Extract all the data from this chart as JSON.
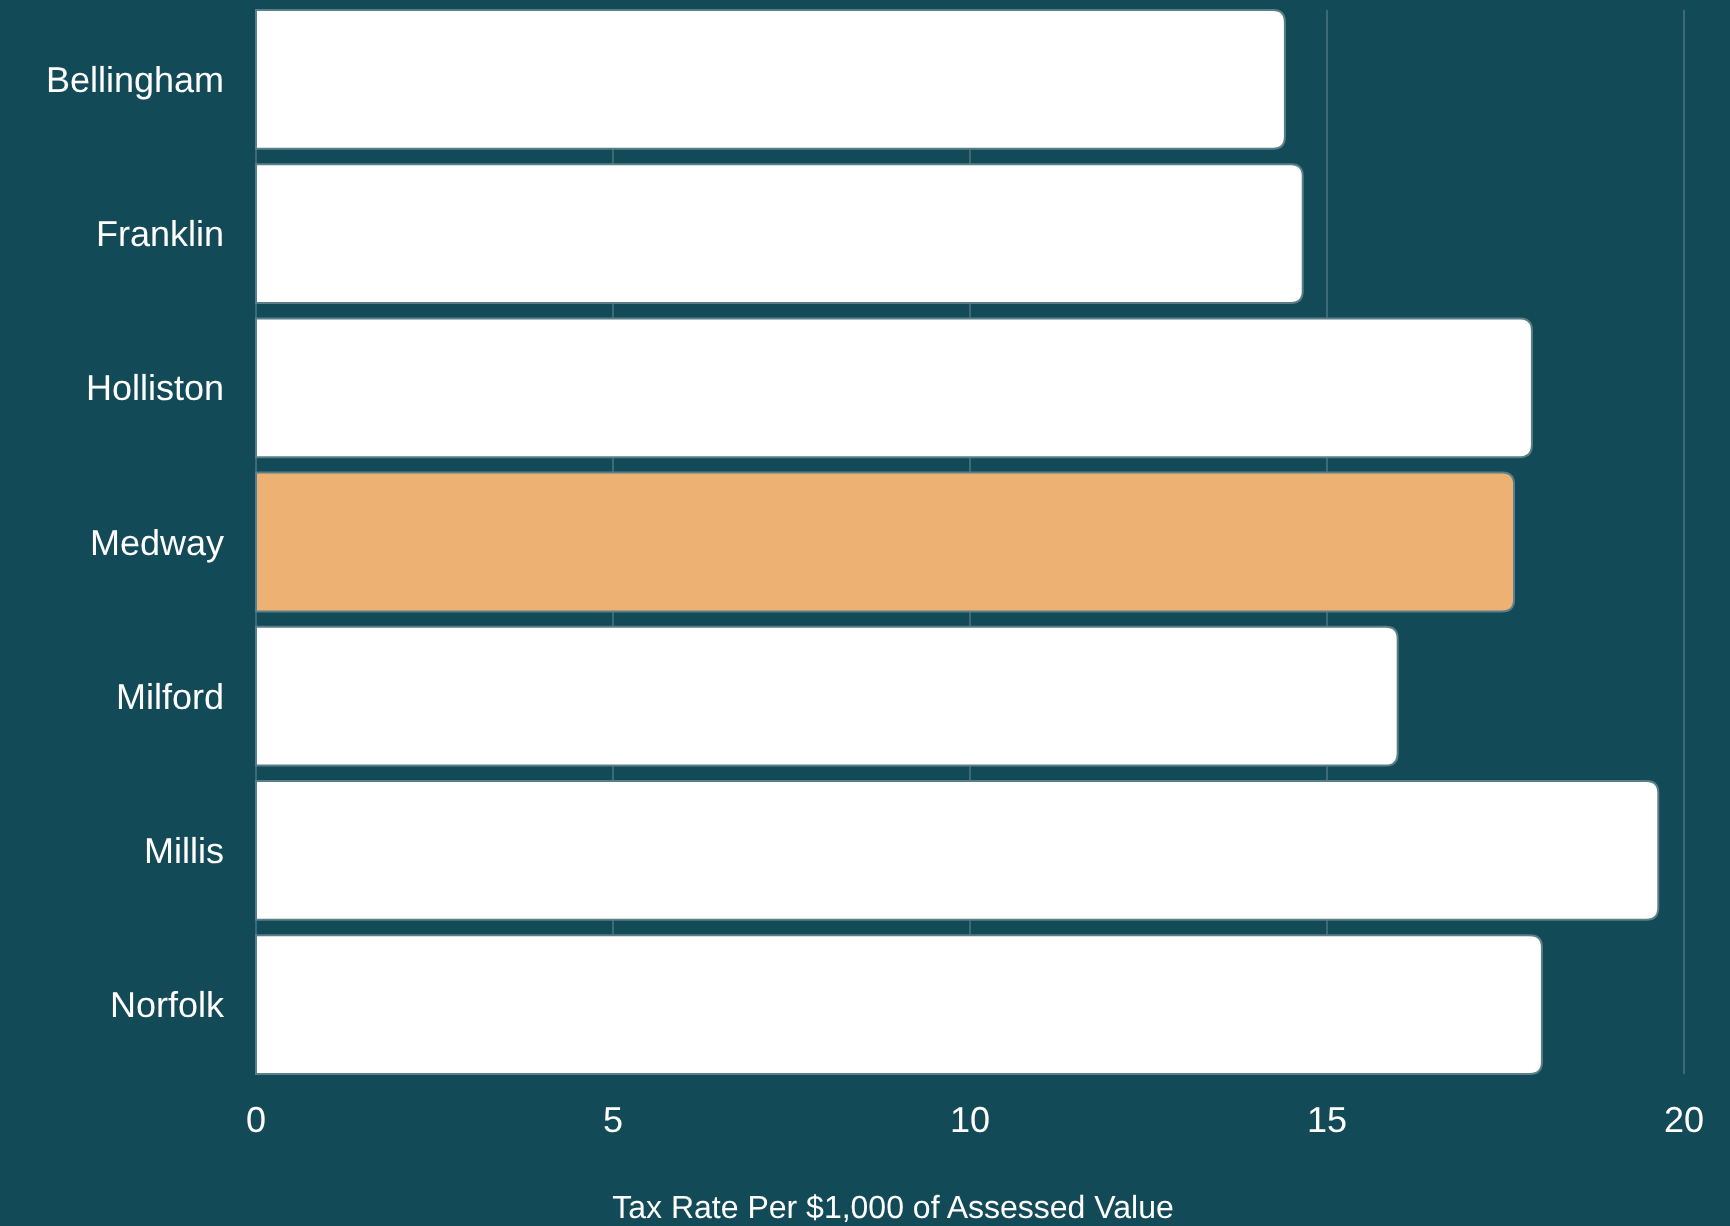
{
  "chart_data": {
    "type": "bar",
    "orientation": "horizontal",
    "xlabel": "Tax Rate Per $1,000 of Assessed Value",
    "categories": [
      "Bellingham",
      "Franklin",
      "Holliston",
      "Medway",
      "Milford",
      "Millis",
      "Norfolk"
    ],
    "values": [
      14.41,
      14.66,
      17.87,
      17.62,
      15.99,
      19.64,
      18.01
    ],
    "colors": [
      "#ffffff",
      "#ffffff",
      "#ffffff",
      "#edb273",
      "#ffffff",
      "#ffffff",
      "#ffffff"
    ],
    "xlim": [
      0,
      20
    ],
    "xticks": [
      0,
      5,
      10,
      15,
      20
    ],
    "grid": "x"
  }
}
